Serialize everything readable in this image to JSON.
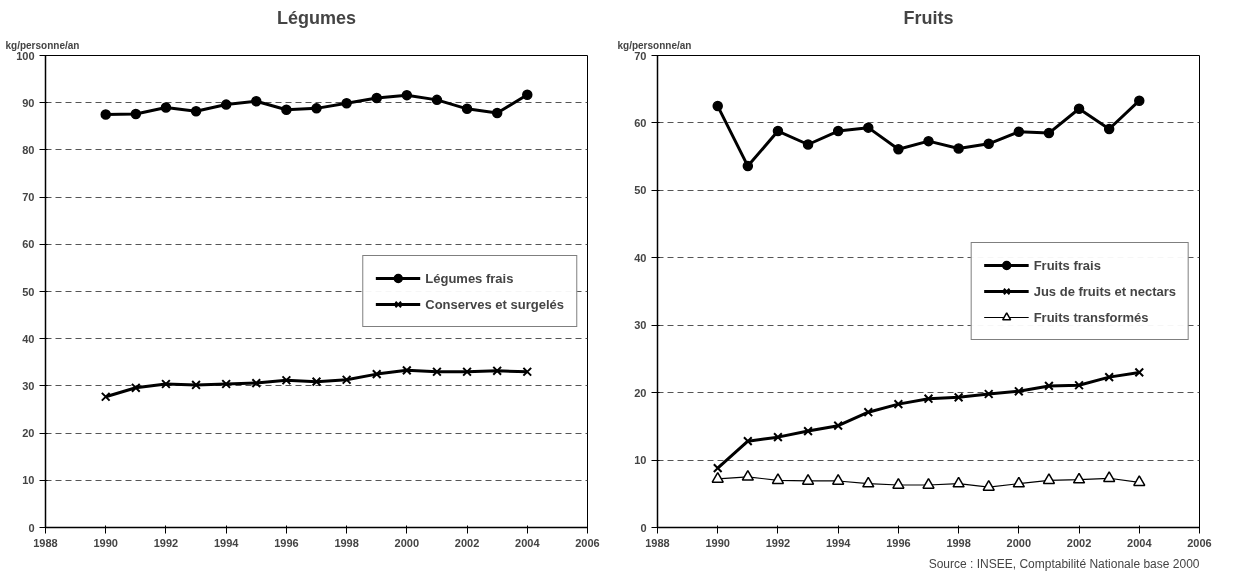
{
  "chart_data": [
    {
      "type": "line",
      "title": "Légumes",
      "ylabel": "kg/personne/an",
      "x": [
        1990,
        1991,
        1992,
        1993,
        1994,
        1995,
        1996,
        1997,
        1998,
        1999,
        2000,
        2001,
        2002,
        2003,
        2004
      ],
      "series": [
        {
          "name": "Légumes frais",
          "color": "#000000",
          "marker": "circle",
          "values": [
            87.5,
            87.6,
            89,
            88.2,
            89.6,
            90.3,
            88.5,
            88.8,
            89.9,
            91,
            91.6,
            90.6,
            88.7,
            87.8,
            91.7
          ]
        },
        {
          "name": "Conserves et surgelés",
          "color": "#000000",
          "marker": "cross",
          "values": [
            27.7,
            29.6,
            30.4,
            30.2,
            30.4,
            30.6,
            31.2,
            30.9,
            31.3,
            32.5,
            33.3,
            33,
            33,
            33.2,
            33
          ]
        }
      ],
      "xlim": [
        1988,
        2006
      ],
      "xticks": [
        1988,
        1990,
        1992,
        1994,
        1996,
        1998,
        2000,
        2002,
        2004,
        2006
      ],
      "ylim": [
        0,
        100
      ],
      "yticks": [
        0,
        10,
        20,
        30,
        40,
        50,
        60,
        70,
        80,
        90,
        100
      ],
      "grid": "y",
      "legend": "right"
    },
    {
      "type": "line",
      "title": "Fruits",
      "ylabel": "kg/personne/an",
      "x": [
        1990,
        1991,
        1992,
        1993,
        1994,
        1995,
        1996,
        1997,
        1998,
        1999,
        2000,
        2001,
        2002,
        2003,
        2004
      ],
      "series": [
        {
          "name": "Fruits frais",
          "color": "#000000",
          "marker": "circle",
          "values": [
            62.5,
            53.6,
            58.8,
            56.8,
            58.8,
            59.3,
            56.1,
            57.3,
            56.2,
            56.9,
            58.7,
            58.5,
            62.1,
            59.1,
            63.3
          ]
        },
        {
          "name": "Jus de fruits et nectars",
          "color": "#000000",
          "marker": "cross",
          "values": [
            8.8,
            12.8,
            13.4,
            14.3,
            15.1,
            17.1,
            18.3,
            19.1,
            19.3,
            19.8,
            20.2,
            21,
            21.1,
            22.3,
            23
          ]
        },
        {
          "name": "Fruits transformés",
          "color": "#000000",
          "marker": "triangle",
          "values": [
            7.2,
            7.5,
            7.0,
            6.9,
            6.9,
            6.5,
            6.3,
            6.3,
            6.5,
            6.0,
            6.5,
            7.0,
            7.1,
            7.3,
            6.7
          ]
        }
      ],
      "xlim": [
        1988,
        2006
      ],
      "xticks": [
        1988,
        1990,
        1992,
        1994,
        1996,
        1998,
        2000,
        2002,
        2004,
        2006
      ],
      "ylim": [
        0,
        70
      ],
      "yticks": [
        0,
        10,
        20,
        30,
        40,
        50,
        60,
        70
      ],
      "grid": "y",
      "legend": "right",
      "annotations": [
        "Source : INSEE, Comptabilité Nationale base 2000"
      ]
    }
  ]
}
